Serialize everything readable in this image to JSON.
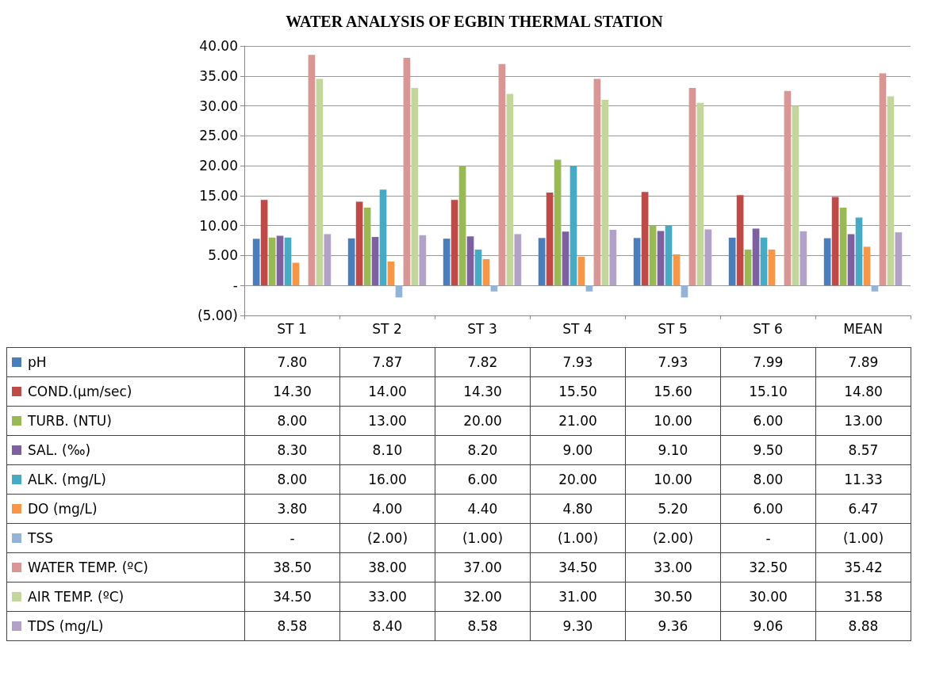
{
  "chart_data": {
    "type": "bar",
    "title": "WATER ANALYSIS OF EGBIN THERMAL STATION",
    "categories": [
      "ST 1",
      "ST 2",
      "ST 3",
      "ST 4",
      "ST 5",
      "ST 6",
      "MEAN"
    ],
    "series": [
      {
        "name": "pH",
        "color": "#4a7ebb",
        "values": [
          7.8,
          7.87,
          7.82,
          7.93,
          7.93,
          7.99,
          7.89
        ],
        "value_labels": [
          "7.80",
          "7.87",
          "7.82",
          "7.93",
          "7.93",
          "7.99",
          "7.89"
        ]
      },
      {
        "name": "COND.(µm/sec)",
        "color": "#be4b48",
        "values": [
          14.3,
          14.0,
          14.3,
          15.5,
          15.6,
          15.1,
          14.8
        ],
        "value_labels": [
          "14.30",
          "14.00",
          "14.30",
          "15.50",
          "15.60",
          "15.10",
          "14.80"
        ]
      },
      {
        "name": "TURB. (NTU)",
        "color": "#98b954",
        "values": [
          8,
          13,
          20,
          21,
          10,
          6,
          13
        ],
        "value_labels": [
          "8.00",
          "13.00",
          "20.00",
          "21.00",
          "10.00",
          "6.00",
          "13.00"
        ]
      },
      {
        "name": "SAL. (‰)",
        "color": "#7d60a0",
        "values": [
          8.3,
          8.1,
          8.2,
          9.0,
          9.1,
          9.5,
          8.57
        ],
        "value_labels": [
          "8.30",
          "8.10",
          "8.20",
          "9.00",
          "9.10",
          "9.50",
          "8.57"
        ]
      },
      {
        "name": "ALK. (mg/L)",
        "color": "#46aac5",
        "values": [
          8,
          16,
          6,
          20,
          10,
          8,
          11.33
        ],
        "value_labels": [
          "8.00",
          "16.00",
          "6.00",
          "20.00",
          "10.00",
          "8.00",
          "11.33"
        ]
      },
      {
        "name": "DO (mg/L)",
        "color": "#f79646",
        "values": [
          3.8,
          4.0,
          4.4,
          4.8,
          5.2,
          6.0,
          6.47
        ],
        "value_labels": [
          "3.80",
          "4.00",
          "4.40",
          "4.80",
          "5.20",
          "6.00",
          "6.47"
        ]
      },
      {
        "name": "TSS",
        "color": "#93b3d7",
        "values": [
          0,
          -2,
          -1,
          -1,
          -2,
          0,
          -1
        ],
        "value_labels": [
          "-",
          "(2.00)",
          "(1.00)",
          "(1.00)",
          "(2.00)",
          "-",
          "(1.00)"
        ]
      },
      {
        "name": "WATER TEMP. (ºC)",
        "color": "#d99694",
        "values": [
          38.5,
          38.0,
          37.0,
          34.5,
          33.0,
          32.5,
          35.42
        ],
        "value_labels": [
          "38.50",
          "38.00",
          "37.00",
          "34.50",
          "33.00",
          "32.50",
          "35.42"
        ]
      },
      {
        "name": "AIR TEMP. (ºC)",
        "color": "#c3d69b",
        "values": [
          34.5,
          33.0,
          32.0,
          31.0,
          30.5,
          30.0,
          31.58
        ],
        "value_labels": [
          "34.50",
          "33.00",
          "32.00",
          "31.00",
          "30.50",
          "30.00",
          "31.58"
        ]
      },
      {
        "name": "TDS (mg/L)",
        "color": "#b3a2c7",
        "values": [
          8.58,
          8.4,
          8.58,
          9.3,
          9.36,
          9.06,
          8.88
        ],
        "value_labels": [
          "8.58",
          "8.40",
          "8.58",
          "9.30",
          "9.36",
          "9.06",
          "8.88"
        ]
      }
    ],
    "ylim": [
      -5,
      40
    ],
    "yticks": [
      {
        "value": -5,
        "label": "(5.00)"
      },
      {
        "value": 0,
        "label": "-"
      },
      {
        "value": 5,
        "label": "5.00"
      },
      {
        "value": 10,
        "label": "10.00"
      },
      {
        "value": 15,
        "label": "15.00"
      },
      {
        "value": 20,
        "label": "20.00"
      },
      {
        "value": 25,
        "label": "25.00"
      },
      {
        "value": 30,
        "label": "30.00"
      },
      {
        "value": 35,
        "label": "35.00"
      },
      {
        "value": 40,
        "label": "40.00"
      }
    ],
    "grid": "y",
    "legend": "bottom"
  }
}
